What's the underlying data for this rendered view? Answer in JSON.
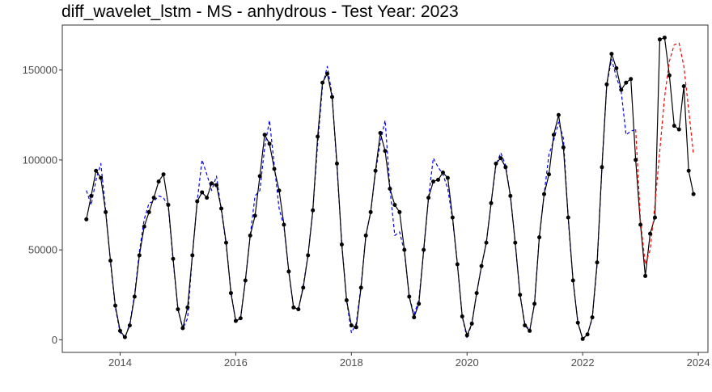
{
  "chart_data": {
    "type": "line",
    "title": "diff_wavelet_lstm - MS - anhydrous - Test Year: 2023",
    "xlabel": "",
    "ylabel": "",
    "x_axis": {
      "type": "time",
      "range": [
        "2013-01",
        "2024-03"
      ],
      "ticks": [
        "2014",
        "2016",
        "2018",
        "2020",
        "2022",
        "2024"
      ]
    },
    "y_axis": {
      "range": [
        -7000,
        175000
      ],
      "ticks": [
        "0",
        "50000",
        "100000",
        "150000"
      ],
      "tick_values": [
        0,
        50000,
        100000,
        150000
      ]
    },
    "grid": false,
    "legend": "none",
    "series": [
      {
        "role": "actual",
        "color": "#000000",
        "line_style": "solid",
        "markers": true,
        "points": [
          [
            "2013-06",
            67000
          ],
          [
            "2013-07",
            80000
          ],
          [
            "2013-08",
            94000
          ],
          [
            "2013-09",
            90000
          ],
          [
            "2013-10",
            71000
          ],
          [
            "2013-11",
            44000
          ],
          [
            "2013-12",
            19000
          ],
          [
            "2014-01",
            5000
          ],
          [
            "2014-02",
            1500
          ],
          [
            "2014-03",
            8000
          ],
          [
            "2014-04",
            24000
          ],
          [
            "2014-05",
            47000
          ],
          [
            "2014-06",
            63000
          ],
          [
            "2014-07",
            71000
          ],
          [
            "2014-08",
            79000
          ],
          [
            "2014-09",
            88000
          ],
          [
            "2014-10",
            92000
          ],
          [
            "2014-11",
            75000
          ],
          [
            "2014-12",
            45000
          ],
          [
            "2015-01",
            17000
          ],
          [
            "2015-02",
            6500
          ],
          [
            "2015-03",
            18000
          ],
          [
            "2015-04",
            47000
          ],
          [
            "2015-05",
            77000
          ],
          [
            "2015-06",
            82000
          ],
          [
            "2015-07",
            79000
          ],
          [
            "2015-08",
            87000
          ],
          [
            "2015-09",
            86000
          ],
          [
            "2015-10",
            73000
          ],
          [
            "2015-11",
            54000
          ],
          [
            "2015-12",
            26000
          ],
          [
            "2016-01",
            10500
          ],
          [
            "2016-02",
            12000
          ],
          [
            "2016-03",
            33000
          ],
          [
            "2016-04",
            58000
          ],
          [
            "2016-05",
            69000
          ],
          [
            "2016-06",
            91000
          ],
          [
            "2016-07",
            114000
          ],
          [
            "2016-08",
            109000
          ],
          [
            "2016-09",
            95000
          ],
          [
            "2016-10",
            83000
          ],
          [
            "2016-11",
            64000
          ],
          [
            "2016-12",
            38000
          ],
          [
            "2017-01",
            18000
          ],
          [
            "2017-02",
            17000
          ],
          [
            "2017-03",
            29000
          ],
          [
            "2017-04",
            47000
          ],
          [
            "2017-05",
            72000
          ],
          [
            "2017-06",
            113000
          ],
          [
            "2017-07",
            143000
          ],
          [
            "2017-08",
            148000
          ],
          [
            "2017-09",
            135000
          ],
          [
            "2017-10",
            98000
          ],
          [
            "2017-11",
            53000
          ],
          [
            "2017-12",
            22000
          ],
          [
            "2018-01",
            8000
          ],
          [
            "2018-02",
            7000
          ],
          [
            "2018-03",
            29000
          ],
          [
            "2018-04",
            58000
          ],
          [
            "2018-05",
            71000
          ],
          [
            "2018-06",
            94000
          ],
          [
            "2018-07",
            115000
          ],
          [
            "2018-08",
            105000
          ],
          [
            "2018-09",
            84000
          ],
          [
            "2018-10",
            75000
          ],
          [
            "2018-11",
            71000
          ],
          [
            "2018-12",
            50000
          ],
          [
            "2019-01",
            24000
          ],
          [
            "2019-02",
            12500
          ],
          [
            "2019-03",
            20000
          ],
          [
            "2019-04",
            50000
          ],
          [
            "2019-05",
            79000
          ],
          [
            "2019-06",
            88000
          ],
          [
            "2019-07",
            89000
          ],
          [
            "2019-08",
            93000
          ],
          [
            "2019-09",
            90000
          ],
          [
            "2019-10",
            68000
          ],
          [
            "2019-11",
            42000
          ],
          [
            "2019-12",
            13000
          ],
          [
            "2020-01",
            2500
          ],
          [
            "2020-02",
            9000
          ],
          [
            "2020-03",
            26000
          ],
          [
            "2020-04",
            41000
          ],
          [
            "2020-05",
            54000
          ],
          [
            "2020-06",
            76000
          ],
          [
            "2020-07",
            98000
          ],
          [
            "2020-08",
            101000
          ],
          [
            "2020-09",
            96000
          ],
          [
            "2020-10",
            80000
          ],
          [
            "2020-11",
            54000
          ],
          [
            "2020-12",
            25000
          ],
          [
            "2021-01",
            8000
          ],
          [
            "2021-02",
            5000
          ],
          [
            "2021-03",
            20000
          ],
          [
            "2021-04",
            57000
          ],
          [
            "2021-05",
            81000
          ],
          [
            "2021-06",
            92000
          ],
          [
            "2021-07",
            114000
          ],
          [
            "2021-08",
            125000
          ],
          [
            "2021-09",
            107000
          ],
          [
            "2021-10",
            68000
          ],
          [
            "2021-11",
            33000
          ],
          [
            "2021-12",
            9500
          ],
          [
            "2022-01",
            500
          ],
          [
            "2022-02",
            3000
          ],
          [
            "2022-03",
            12500
          ],
          [
            "2022-04",
            43000
          ],
          [
            "2022-05",
            96000
          ],
          [
            "2022-06",
            142000
          ],
          [
            "2022-07",
            159000
          ],
          [
            "2022-08",
            151000
          ],
          [
            "2022-09",
            139000
          ],
          [
            "2022-10",
            143000
          ],
          [
            "2022-11",
            145000
          ],
          [
            "2022-12",
            100000
          ],
          [
            "2023-01",
            64000
          ],
          [
            "2023-02",
            35500
          ],
          [
            "2023-03",
            59000
          ],
          [
            "2023-04",
            68000
          ],
          [
            "2023-05",
            167000
          ],
          [
            "2023-06",
            168000
          ],
          [
            "2023-07",
            147000
          ],
          [
            "2023-08",
            119000
          ],
          [
            "2023-09",
            117000
          ],
          [
            "2023-10",
            141000
          ],
          [
            "2023-11",
            94000
          ],
          [
            "2023-12",
            81000
          ]
        ]
      },
      {
        "role": "fitted",
        "color": "#0000ff",
        "line_style": "dashed",
        "markers": false,
        "points": [
          [
            "2013-06",
            83000
          ],
          [
            "2013-07",
            75000
          ],
          [
            "2013-08",
            89000
          ],
          [
            "2013-09",
            98000
          ],
          [
            "2013-10",
            72000
          ],
          [
            "2013-11",
            43000
          ],
          [
            "2013-12",
            18000
          ],
          [
            "2014-01",
            4000
          ],
          [
            "2014-02",
            1000
          ],
          [
            "2014-03",
            9000
          ],
          [
            "2014-04",
            25000
          ],
          [
            "2014-05",
            49000
          ],
          [
            "2014-06",
            67000
          ],
          [
            "2014-07",
            76000
          ],
          [
            "2014-08",
            77000
          ],
          [
            "2014-09",
            80000
          ],
          [
            "2014-10",
            79000
          ],
          [
            "2014-11",
            74000
          ],
          [
            "2014-12",
            44000
          ],
          [
            "2015-01",
            17000
          ],
          [
            "2015-02",
            6000
          ],
          [
            "2015-03",
            12000
          ],
          [
            "2015-04",
            47000
          ],
          [
            "2015-05",
            77000
          ],
          [
            "2015-06",
            100000
          ],
          [
            "2015-07",
            92000
          ],
          [
            "2015-08",
            83000
          ],
          [
            "2015-09",
            91000
          ],
          [
            "2015-10",
            72000
          ],
          [
            "2015-11",
            53000
          ],
          [
            "2015-12",
            27000
          ],
          [
            "2016-01",
            10000
          ],
          [
            "2016-02",
            12000
          ],
          [
            "2016-03",
            33000
          ],
          [
            "2016-04",
            58000
          ],
          [
            "2016-05",
            80000
          ],
          [
            "2016-06",
            83000
          ],
          [
            "2016-07",
            107000
          ],
          [
            "2016-08",
            122000
          ],
          [
            "2016-09",
            97000
          ],
          [
            "2016-10",
            73000
          ],
          [
            "2016-11",
            63000
          ],
          [
            "2016-12",
            38000
          ],
          [
            "2017-01",
            18000
          ],
          [
            "2017-02",
            17000
          ],
          [
            "2017-03",
            30000
          ],
          [
            "2017-04",
            47000
          ],
          [
            "2017-05",
            72000
          ],
          [
            "2017-06",
            109000
          ],
          [
            "2017-07",
            141000
          ],
          [
            "2017-08",
            152000
          ],
          [
            "2017-09",
            136000
          ],
          [
            "2017-10",
            96000
          ],
          [
            "2017-11",
            54000
          ],
          [
            "2017-12",
            22000
          ],
          [
            "2018-01",
            4000
          ],
          [
            "2018-02",
            9000
          ],
          [
            "2018-03",
            30000
          ],
          [
            "2018-04",
            58000
          ],
          [
            "2018-05",
            71000
          ],
          [
            "2018-06",
            93000
          ],
          [
            "2018-07",
            110000
          ],
          [
            "2018-08",
            122000
          ],
          [
            "2018-09",
            84000
          ],
          [
            "2018-10",
            58000
          ],
          [
            "2018-11",
            60000
          ],
          [
            "2018-12",
            49000
          ],
          [
            "2019-01",
            24000
          ],
          [
            "2019-02",
            14000
          ],
          [
            "2019-03",
            22000
          ],
          [
            "2019-04",
            49000
          ],
          [
            "2019-05",
            79000
          ],
          [
            "2019-06",
            101000
          ],
          [
            "2019-07",
            96000
          ],
          [
            "2019-08",
            92000
          ],
          [
            "2019-09",
            84000
          ],
          [
            "2019-10",
            67000
          ],
          [
            "2019-11",
            42000
          ],
          [
            "2019-12",
            13000
          ],
          [
            "2020-01",
            1000
          ],
          [
            "2020-02",
            9000
          ],
          [
            "2020-03",
            26000
          ],
          [
            "2020-04",
            41000
          ],
          [
            "2020-05",
            54000
          ],
          [
            "2020-06",
            76000
          ],
          [
            "2020-07",
            97000
          ],
          [
            "2020-08",
            104000
          ],
          [
            "2020-09",
            97000
          ],
          [
            "2020-10",
            80000
          ],
          [
            "2020-11",
            54000
          ],
          [
            "2020-12",
            25000
          ],
          [
            "2021-01",
            9000
          ],
          [
            "2021-02",
            5000
          ],
          [
            "2021-03",
            20000
          ],
          [
            "2021-04",
            57000
          ],
          [
            "2021-05",
            81000
          ],
          [
            "2021-06",
            103000
          ],
          [
            "2021-07",
            111000
          ],
          [
            "2021-08",
            121000
          ],
          [
            "2021-09",
            112000
          ],
          [
            "2021-10",
            67000
          ],
          [
            "2021-11",
            33000
          ],
          [
            "2021-12",
            10000
          ],
          [
            "2022-01",
            500
          ],
          [
            "2022-02",
            3000
          ],
          [
            "2022-03",
            12000
          ],
          [
            "2022-04",
            42000
          ],
          [
            "2022-05",
            96000
          ],
          [
            "2022-06",
            142000
          ],
          [
            "2022-07",
            156000
          ],
          [
            "2022-08",
            146000
          ],
          [
            "2022-09",
            138000
          ],
          [
            "2022-10",
            114000
          ],
          [
            "2022-11",
            116000
          ],
          [
            "2022-12",
            117000
          ]
        ]
      },
      {
        "role": "forecast",
        "color": "#ff0000",
        "line_style": "dashed",
        "markers": false,
        "points": [
          [
            "2022-12",
            117000
          ],
          [
            "2023-01",
            66000
          ],
          [
            "2023-02",
            42000
          ],
          [
            "2023-03",
            50000
          ],
          [
            "2023-04",
            75000
          ],
          [
            "2023-05",
            105000
          ],
          [
            "2023-06",
            135000
          ],
          [
            "2023-07",
            155000
          ],
          [
            "2023-08",
            164000
          ],
          [
            "2023-09",
            165000
          ],
          [
            "2023-10",
            152000
          ],
          [
            "2023-11",
            128000
          ],
          [
            "2023-12",
            103000
          ]
        ]
      }
    ]
  }
}
